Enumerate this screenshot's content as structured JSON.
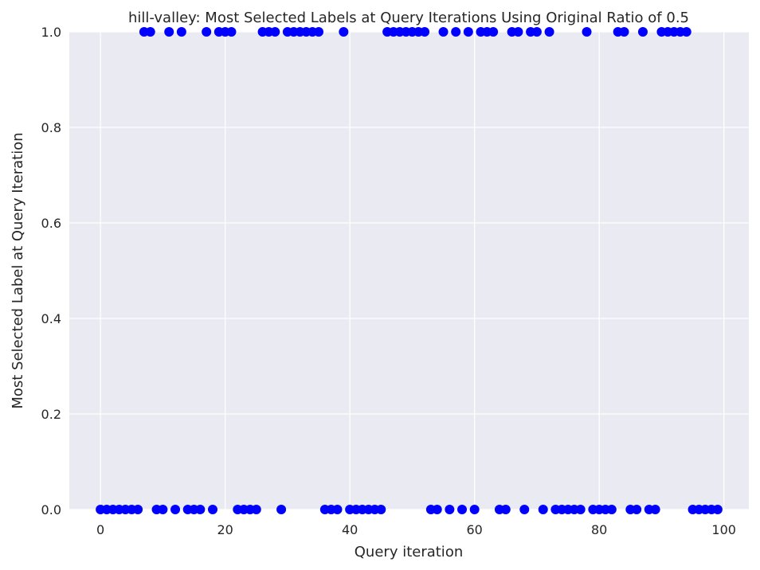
{
  "chart_data": {
    "type": "scatter",
    "title": "hill-valley: Most Selected Labels at Query Iterations Using Original Ratio of 0.5",
    "xlabel": "Query iteration",
    "ylabel": "Most Selected Label at Query Iteration",
    "xlim": [
      -5,
      104
    ],
    "ylim": [
      0,
      1
    ],
    "xticks": [
      0,
      20,
      40,
      60,
      80,
      100
    ],
    "xtick_labels": [
      "0",
      "20",
      "40",
      "60",
      "80",
      "100"
    ],
    "yticks": [
      0,
      0.2,
      0.4,
      0.6,
      0.8,
      1.0
    ],
    "ytick_labels": [
      "0.0",
      "0.2",
      "0.4",
      "0.6",
      "0.8",
      "1.0"
    ],
    "grid": true,
    "marker_color": "#0000ff",
    "background_color": "#eaeaf2",
    "grid_color": "#ffffff",
    "series": [
      {
        "x": [
          0,
          1,
          2,
          3,
          4,
          5,
          6,
          7,
          8,
          9,
          10,
          11,
          12,
          13,
          14,
          15,
          16,
          17,
          18,
          19,
          20,
          21,
          22,
          23,
          24,
          25,
          26,
          27,
          28,
          29,
          30,
          31,
          32,
          33,
          34,
          35,
          36,
          37,
          38,
          39,
          40,
          41,
          42,
          43,
          44,
          45,
          46,
          47,
          48,
          49,
          50,
          51,
          52,
          53,
          54,
          55,
          56,
          57,
          58,
          59,
          60,
          61,
          62,
          63,
          64,
          65,
          66,
          67,
          68,
          69,
          70,
          71,
          72,
          73,
          74,
          75,
          76,
          77,
          78,
          79,
          80,
          81,
          82,
          83,
          84,
          85,
          86,
          87,
          88,
          89,
          90,
          91,
          92,
          93,
          94,
          95,
          96,
          97,
          98,
          99
        ],
        "y": [
          0,
          0,
          0,
          0,
          0,
          0,
          0,
          1,
          1,
          0,
          0,
          1,
          0,
          1,
          0,
          0,
          0,
          1,
          0,
          1,
          1,
          1,
          0,
          0,
          0,
          0,
          1,
          1,
          1,
          0,
          1,
          1,
          1,
          1,
          1,
          1,
          0,
          0,
          0,
          1,
          0,
          0,
          0,
          0,
          0,
          0,
          1,
          1,
          1,
          1,
          1,
          1,
          1,
          0,
          0,
          1,
          0,
          1,
          0,
          1,
          0,
          1,
          1,
          1,
          0,
          0,
          1,
          1,
          0,
          1,
          1,
          0,
          1,
          0,
          0,
          0,
          0,
          0,
          1,
          0,
          0,
          0,
          0,
          1,
          1,
          0,
          0,
          1,
          0,
          0,
          1,
          1,
          1,
          1,
          1,
          0,
          0,
          0,
          0,
          0
        ]
      }
    ]
  }
}
